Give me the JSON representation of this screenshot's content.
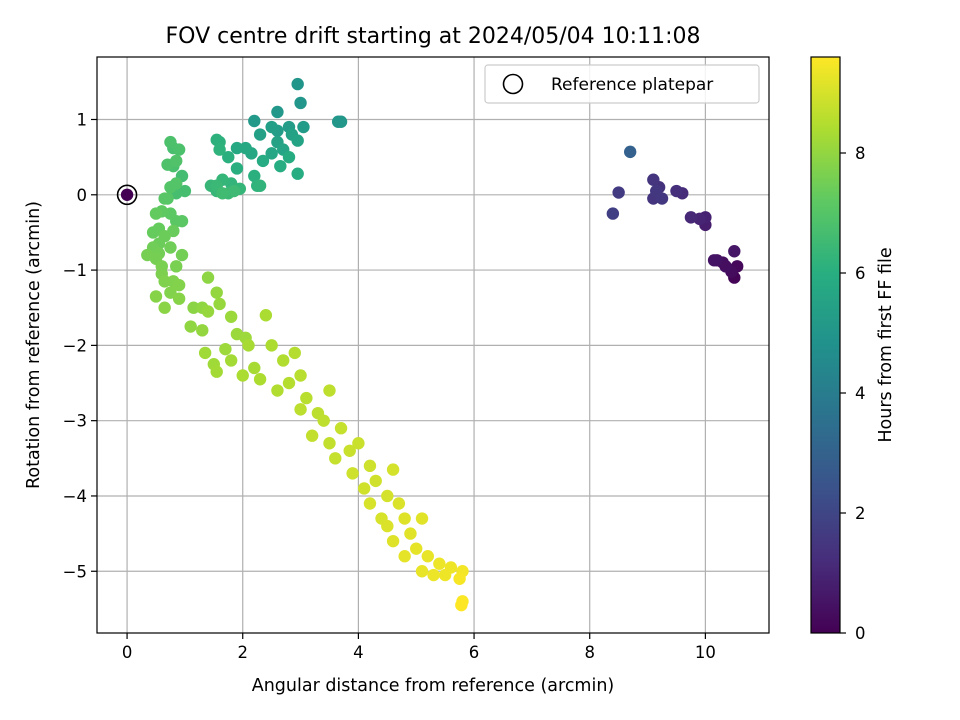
{
  "chart_data": {
    "type": "scatter",
    "title": "FOV centre drift starting at 2024/05/04 10:11:08",
    "xlabel": "Angular distance from reference (arcmin)",
    "ylabel": "Rotation from reference (arcmin)",
    "xlim": [
      -0.52,
      11.1
    ],
    "ylim": [
      -5.82,
      1.83
    ],
    "xticks": [
      0,
      2,
      4,
      6,
      8,
      10
    ],
    "yticks": [
      1,
      0,
      -1,
      -2,
      -3,
      -4,
      -5
    ],
    "grid": true,
    "legend": {
      "placement": "upper right",
      "entries": [
        "Reference platepar"
      ]
    },
    "reference_point": {
      "x": 0,
      "y": 0,
      "c": 0
    },
    "colorbar": {
      "label": "Hours from first FF file",
      "min": 0,
      "max": 9.6,
      "ticks": [
        0,
        2,
        4,
        6,
        8
      ],
      "colormap": "viridis"
    },
    "points": [
      [
        10.5,
        -1.1,
        0.1
      ],
      [
        10.55,
        -0.95,
        0.2
      ],
      [
        10.45,
        -1.02,
        0.3
      ],
      [
        10.35,
        -0.95,
        0.4
      ],
      [
        10.3,
        -0.9,
        0.35
      ],
      [
        10.2,
        -0.87,
        0.45
      ],
      [
        10.15,
        -0.87,
        0.5
      ],
      [
        10.5,
        -0.75,
        0.6
      ],
      [
        10.0,
        -0.4,
        0.8
      ],
      [
        10.0,
        -0.3,
        0.9
      ],
      [
        9.9,
        -0.32,
        1.0
      ],
      [
        9.75,
        -0.3,
        1.1
      ],
      [
        9.6,
        0.02,
        1.2
      ],
      [
        9.5,
        0.05,
        1.3
      ],
      [
        9.2,
        0.1,
        1.4
      ],
      [
        9.1,
        0.2,
        1.5
      ],
      [
        9.1,
        -0.05,
        1.5
      ],
      [
        9.25,
        -0.05,
        1.6
      ],
      [
        9.15,
        0.05,
        1.6
      ],
      [
        8.5,
        0.03,
        1.7
      ],
      [
        8.4,
        -0.25,
        1.8
      ],
      [
        8.7,
        0.57,
        3.0
      ],
      [
        2.95,
        1.47,
        5.0
      ],
      [
        3.0,
        1.22,
        5.05
      ],
      [
        3.65,
        0.97,
        5.1
      ],
      [
        3.7,
        0.97,
        5.1
      ],
      [
        2.6,
        1.1,
        5.15
      ],
      [
        2.2,
        0.98,
        5.2
      ],
      [
        3.05,
        0.9,
        5.25
      ],
      [
        2.8,
        0.9,
        5.3
      ],
      [
        2.6,
        0.85,
        5.35
      ],
      [
        2.5,
        0.9,
        5.4
      ],
      [
        2.3,
        0.8,
        5.45
      ],
      [
        2.6,
        0.7,
        5.5
      ],
      [
        2.85,
        0.8,
        5.55
      ],
      [
        2.95,
        0.72,
        5.6
      ],
      [
        2.7,
        0.6,
        5.65
      ],
      [
        2.5,
        0.55,
        5.7
      ],
      [
        2.15,
        0.55,
        5.75
      ],
      [
        2.05,
        0.62,
        5.8
      ],
      [
        1.9,
        0.62,
        5.85
      ],
      [
        2.35,
        0.45,
        5.9
      ],
      [
        2.8,
        0.5,
        5.95
      ],
      [
        2.65,
        0.38,
        6.0
      ],
      [
        2.95,
        0.28,
        6.0
      ],
      [
        1.9,
        0.35,
        6.05
      ],
      [
        2.2,
        0.25,
        6.1
      ],
      [
        1.75,
        0.5,
        6.1
      ],
      [
        1.6,
        0.7,
        6.15
      ],
      [
        1.55,
        0.73,
        6.15
      ],
      [
        1.6,
        0.6,
        6.2
      ],
      [
        2.25,
        0.12,
        6.2
      ],
      [
        2.3,
        0.12,
        6.25
      ],
      [
        1.8,
        0.15,
        6.3
      ],
      [
        1.95,
        0.08,
        6.35
      ],
      [
        1.65,
        0.2,
        6.35
      ],
      [
        1.55,
        0.05,
        6.4
      ],
      [
        1.45,
        0.12,
        6.4
      ],
      [
        1.55,
        0.12,
        6.45
      ],
      [
        1.75,
        0.02,
        6.5
      ],
      [
        1.85,
        0.05,
        6.55
      ],
      [
        1.65,
        0.02,
        6.6
      ],
      [
        0.95,
        0.25,
        6.65
      ],
      [
        1.0,
        0.05,
        6.7
      ],
      [
        0.85,
        0.02,
        6.7
      ],
      [
        0.8,
        0.62,
        6.75
      ],
      [
        0.8,
        0.38,
        6.8
      ],
      [
        0.75,
        0.7,
        6.85
      ],
      [
        0.9,
        0.6,
        6.85
      ],
      [
        0.7,
        0.4,
        6.9
      ],
      [
        0.85,
        0.45,
        6.95
      ],
      [
        0.75,
        0.1,
        7.0
      ],
      [
        0.85,
        0.15,
        7.0
      ],
      [
        0.7,
        -0.05,
        7.05
      ],
      [
        0.65,
        -0.05,
        7.1
      ],
      [
        0.85,
        -0.35,
        7.15
      ],
      [
        0.95,
        -0.35,
        7.15
      ],
      [
        0.75,
        -0.25,
        7.2
      ],
      [
        0.6,
        -0.22,
        7.25
      ],
      [
        0.5,
        -0.25,
        7.3
      ],
      [
        0.55,
        -0.45,
        7.35
      ],
      [
        0.45,
        -0.5,
        7.35
      ],
      [
        0.8,
        -0.48,
        7.4
      ],
      [
        0.65,
        -0.55,
        7.45
      ],
      [
        0.55,
        -0.65,
        7.45
      ],
      [
        0.45,
        -0.7,
        7.5
      ],
      [
        0.75,
        -0.7,
        7.5
      ],
      [
        0.95,
        -0.8,
        7.55
      ],
      [
        0.55,
        -0.78,
        7.55
      ],
      [
        0.35,
        -0.8,
        7.6
      ],
      [
        0.5,
        -0.85,
        7.6
      ],
      [
        0.6,
        -0.95,
        7.65
      ],
      [
        0.85,
        -0.95,
        7.65
      ],
      [
        0.6,
        -1.05,
        7.7
      ],
      [
        0.65,
        -1.15,
        7.75
      ],
      [
        0.8,
        -1.15,
        7.75
      ],
      [
        0.9,
        -1.2,
        7.8
      ],
      [
        0.75,
        -1.3,
        7.8
      ],
      [
        0.5,
        -1.35,
        7.85
      ],
      [
        0.9,
        -1.38,
        7.85
      ],
      [
        0.65,
        -1.5,
        7.9
      ],
      [
        1.15,
        -1.5,
        7.9
      ],
      [
        1.4,
        -1.1,
        7.95
      ],
      [
        1.3,
        -1.5,
        8.0
      ],
      [
        1.1,
        -1.75,
        8.0
      ],
      [
        1.3,
        -1.8,
        8.05
      ],
      [
        1.55,
        -1.3,
        8.05
      ],
      [
        1.6,
        -1.45,
        8.1
      ],
      [
        1.4,
        -1.55,
        8.1
      ],
      [
        1.8,
        -1.62,
        8.15
      ],
      [
        1.9,
        -1.85,
        8.15
      ],
      [
        2.05,
        -1.9,
        8.2
      ],
      [
        1.7,
        -2.05,
        8.2
      ],
      [
        1.35,
        -2.1,
        8.25
      ],
      [
        1.5,
        -2.25,
        8.25
      ],
      [
        1.55,
        -2.35,
        8.3
      ],
      [
        1.8,
        -2.2,
        8.3
      ],
      [
        2.1,
        -2.0,
        8.35
      ],
      [
        2.2,
        -2.3,
        8.35
      ],
      [
        2.0,
        -2.4,
        8.4
      ],
      [
        2.4,
        -1.6,
        8.4
      ],
      [
        2.5,
        -2.0,
        8.45
      ],
      [
        2.3,
        -2.45,
        8.45
      ],
      [
        2.7,
        -2.2,
        8.5
      ],
      [
        2.6,
        -2.6,
        8.5
      ],
      [
        2.9,
        -2.1,
        8.55
      ],
      [
        2.8,
        -2.5,
        8.55
      ],
      [
        3.0,
        -2.4,
        8.6
      ],
      [
        3.1,
        -2.7,
        8.6
      ],
      [
        3.3,
        -2.9,
        8.65
      ],
      [
        3.0,
        -2.85,
        8.65
      ],
      [
        3.4,
        -3.0,
        8.7
      ],
      [
        3.5,
        -2.6,
        8.7
      ],
      [
        3.2,
        -3.2,
        8.75
      ],
      [
        3.5,
        -3.3,
        8.75
      ],
      [
        3.7,
        -3.1,
        8.8
      ],
      [
        3.6,
        -3.5,
        8.8
      ],
      [
        3.85,
        -3.4,
        8.85
      ],
      [
        4.0,
        -3.3,
        8.85
      ],
      [
        3.9,
        -3.7,
        8.9
      ],
      [
        4.2,
        -3.6,
        8.9
      ],
      [
        4.1,
        -3.9,
        8.95
      ],
      [
        4.3,
        -3.8,
        8.95
      ],
      [
        4.6,
        -3.65,
        9.0
      ],
      [
        4.5,
        -4.0,
        9.0
      ],
      [
        4.2,
        -4.1,
        9.05
      ],
      [
        4.4,
        -4.3,
        9.05
      ],
      [
        4.7,
        -4.1,
        9.1
      ],
      [
        4.5,
        -4.4,
        9.1
      ],
      [
        4.8,
        -4.3,
        9.15
      ],
      [
        4.6,
        -4.6,
        9.15
      ],
      [
        4.9,
        -4.5,
        9.2
      ],
      [
        5.1,
        -4.3,
        9.2
      ],
      [
        5.0,
        -4.7,
        9.25
      ],
      [
        4.8,
        -4.8,
        9.25
      ],
      [
        5.2,
        -4.8,
        9.3
      ],
      [
        5.1,
        -5.0,
        9.3
      ],
      [
        5.4,
        -4.9,
        9.35
      ],
      [
        5.3,
        -5.05,
        9.35
      ],
      [
        5.6,
        -4.95,
        9.4
      ],
      [
        5.5,
        -5.05,
        9.4
      ],
      [
        5.8,
        -5.0,
        9.45
      ],
      [
        5.75,
        -5.1,
        9.5
      ],
      [
        5.8,
        -5.4,
        9.55
      ],
      [
        5.78,
        -5.45,
        9.6
      ]
    ]
  }
}
